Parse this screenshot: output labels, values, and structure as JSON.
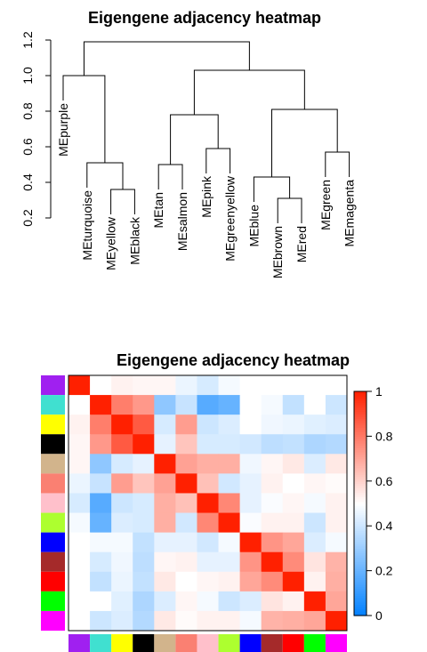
{
  "chart_data": [
    {
      "type": "dendrogram",
      "title": "Eigengene adjacency heatmap",
      "ylim": [
        0.2,
        1.25
      ],
      "y_ticks": [
        "0.2",
        "0.4",
        "0.6",
        "0.8",
        "1.0",
        "1.2"
      ],
      "leaves": [
        "MEpurple",
        "MEturquoise",
        "MEyellow",
        "MEblack",
        "MEtan",
        "MEsalmon",
        "MEpink",
        "MEgreenyellow",
        "MEblue",
        "MEbrown",
        "MEred",
        "MEgreen",
        "MEmagenta"
      ],
      "merges": [
        {
          "a": "MEyellow",
          "b": "MEblack",
          "height": 0.36
        },
        {
          "a": "MEtan",
          "b": "MEsalmon",
          "height": 0.5
        },
        {
          "a": "MEpink",
          "b": "MEgreenyellow",
          "height": 0.59
        },
        {
          "a": "MEbrown",
          "b": "MEred",
          "height": 0.31
        },
        {
          "a": "MEgreen",
          "b": "MEmagenta",
          "height": 0.57
        },
        {
          "a": "MEturquoise",
          "b": "MEyellow+MEblack",
          "height": 0.51
        },
        {
          "a": "MEblue",
          "b": "MEbrown+MEred",
          "height": 0.43
        },
        {
          "a": "MEpurple",
          "b": "MEturquoise+MEyellow+MEblack",
          "height": 1.0
        },
        {
          "a": "MEtan+MEsalmon",
          "b": "MEpink+MEgreenyellow",
          "height": 0.78
        },
        {
          "a": "MEblue+MEbrown+MEred",
          "b": "MEgreen+MEmagenta",
          "height": 0.81
        },
        {
          "a": "MEtan+MEsalmon+MEpink+MEgreenyellow",
          "b": "MEblue+MEbrown+MEred+MEgreen+MEmagenta",
          "height": 1.03
        },
        {
          "a": "MEpurple+MEturquoise+MEyellow+MEblack",
          "b": "MEtan+MEsalmon+MEpink+MEgreenyellow+MEblue+MEbrown+MEred+MEgreen+MEmagenta",
          "height": 1.19
        }
      ]
    },
    {
      "type": "heatmap",
      "title": "Eigengene adjacency heatmap",
      "module_colors": [
        "#a020f0",
        "#40e0d0",
        "#ffff00",
        "#000000",
        "#d2b48c",
        "#fa8072",
        "#ffc0cb",
        "#adff2f",
        "#0000ff",
        "#a52a2a",
        "#ff0000",
        "#00ff00",
        "#ff00ff"
      ],
      "values": [
        [
          1.0,
          0.5,
          0.53,
          0.52,
          0.52,
          0.46,
          0.42,
          0.48,
          0.5,
          0.5,
          0.5,
          0.5,
          0.5
        ],
        [
          0.5,
          1.0,
          0.79,
          0.73,
          0.28,
          0.39,
          0.17,
          0.2,
          0.5,
          0.48,
          0.38,
          0.5,
          0.4
        ],
        [
          0.53,
          0.79,
          1.0,
          0.87,
          0.42,
          0.72,
          0.4,
          0.43,
          0.5,
          0.47,
          0.46,
          0.44,
          0.43
        ],
        [
          0.52,
          0.73,
          0.87,
          1.0,
          0.45,
          0.63,
          0.42,
          0.42,
          0.41,
          0.37,
          0.38,
          0.34,
          0.35
        ],
        [
          0.52,
          0.28,
          0.42,
          0.45,
          1.0,
          0.71,
          0.68,
          0.68,
          0.47,
          0.52,
          0.55,
          0.43,
          0.55
        ],
        [
          0.46,
          0.39,
          0.72,
          0.63,
          0.71,
          1.0,
          0.64,
          0.41,
          0.45,
          0.53,
          0.5,
          0.52,
          0.51
        ],
        [
          0.42,
          0.17,
          0.4,
          0.42,
          0.68,
          0.64,
          1.0,
          0.77,
          0.45,
          0.49,
          0.52,
          0.48,
          0.53
        ],
        [
          0.48,
          0.2,
          0.43,
          0.42,
          0.68,
          0.41,
          0.77,
          1.0,
          0.49,
          0.53,
          0.53,
          0.4,
          0.53
        ],
        [
          0.5,
          0.48,
          0.48,
          0.38,
          0.45,
          0.45,
          0.41,
          0.48,
          1.0,
          0.74,
          0.7,
          0.43,
          0.48
        ],
        [
          0.5,
          0.42,
          0.47,
          0.37,
          0.52,
          0.53,
          0.45,
          0.45,
          0.74,
          1.0,
          0.76,
          0.56,
          0.67
        ],
        [
          0.5,
          0.38,
          0.46,
          0.38,
          0.55,
          0.5,
          0.52,
          0.53,
          0.7,
          0.76,
          1.0,
          0.53,
          0.68
        ],
        [
          0.5,
          0.5,
          0.44,
          0.34,
          0.43,
          0.52,
          0.48,
          0.4,
          0.43,
          0.56,
          0.53,
          1.0,
          0.7
        ],
        [
          0.5,
          0.4,
          0.43,
          0.35,
          0.55,
          0.51,
          0.53,
          0.53,
          0.48,
          0.67,
          0.68,
          0.7,
          1.0
        ]
      ],
      "colorbar": {
        "min": 0,
        "max": 1,
        "ticks": [
          "0",
          "0.2",
          "0.4",
          "0.6",
          "0.8",
          "1"
        ]
      },
      "color_scale": [
        "#0080ff",
        "#ffffff",
        "#ff2000"
      ]
    }
  ]
}
